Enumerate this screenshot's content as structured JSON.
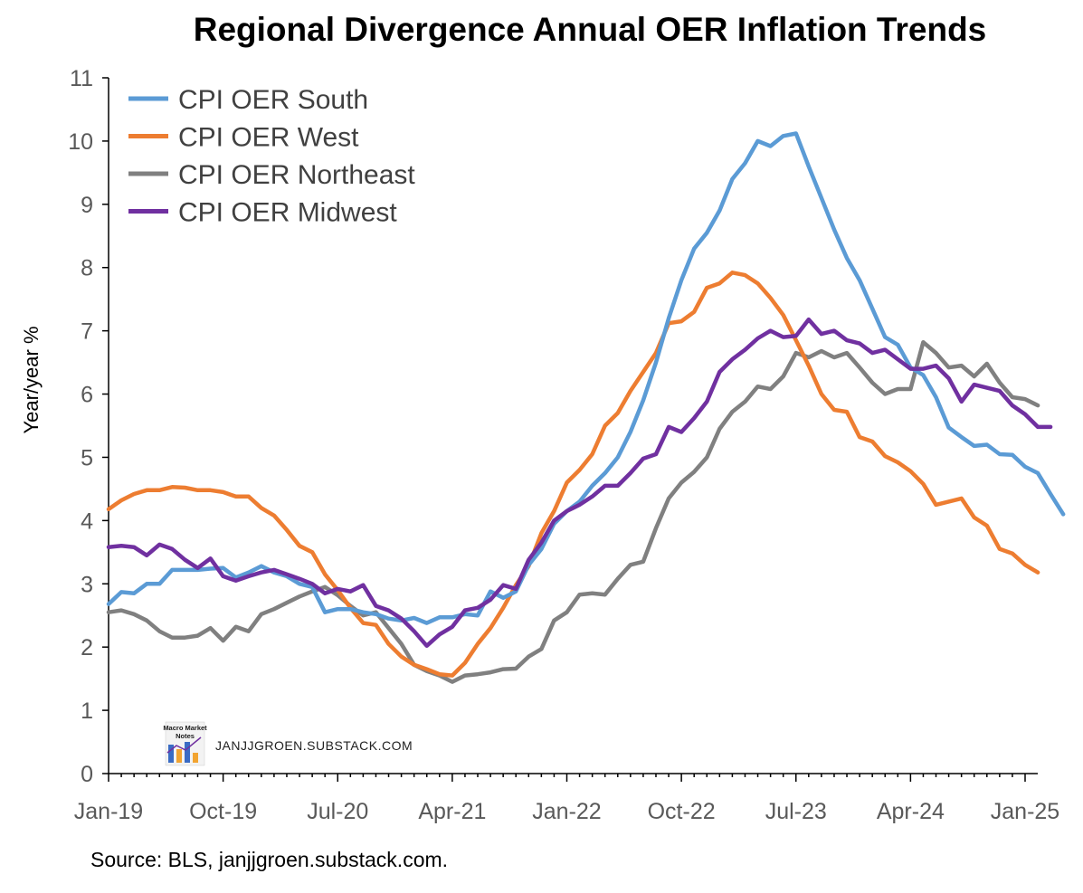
{
  "chart_data": {
    "type": "line",
    "title": "Regional Divergence Annual OER Inflation Trends",
    "ylabel": "Year/year %",
    "xlabel": "",
    "ylim": [
      0,
      11
    ],
    "yticks": [
      0,
      1,
      2,
      3,
      4,
      5,
      6,
      7,
      8,
      9,
      10,
      11
    ],
    "xticks": [
      "Jan-19",
      "Oct-19",
      "Jul-20",
      "Apr-21",
      "Jan-22",
      "Oct-22",
      "Jul-23",
      "Apr-24",
      "Jan-25"
    ],
    "x_start": "Jan-19",
    "x_end": "Jan-25",
    "grid": false,
    "legend_position": "top-left",
    "source": "Source: BLS, janjjgroen.substack.com.",
    "watermark": {
      "text": "JANJJGROEN.SUBSTACK.COM",
      "logo_text": [
        "Macro Market",
        "Notes"
      ]
    },
    "series": [
      {
        "name": "CPI OER South",
        "color": "#5B9BD5",
        "values": [
          2.68,
          2.87,
          2.85,
          3.0,
          3.0,
          3.22,
          3.22,
          3.22,
          3.24,
          3.25,
          3.1,
          3.18,
          3.28,
          3.18,
          3.12,
          3.0,
          2.95,
          2.55,
          2.6,
          2.6,
          2.55,
          2.52,
          2.45,
          2.42,
          2.46,
          2.38,
          2.47,
          2.47,
          2.52,
          2.5,
          2.88,
          2.78,
          2.88,
          3.3,
          3.55,
          3.95,
          4.15,
          4.3,
          4.55,
          4.75,
          5.0,
          5.4,
          5.9,
          6.5,
          7.2,
          7.8,
          8.3,
          8.55,
          8.9,
          9.4,
          9.65,
          10.0,
          9.92,
          10.08,
          10.12,
          9.6,
          9.1,
          8.6,
          8.15,
          7.8,
          7.35,
          6.9,
          6.78,
          6.42,
          6.3,
          5.95,
          5.47,
          5.32,
          5.18,
          5.2,
          5.05,
          5.04,
          4.85,
          4.75,
          4.42,
          4.1
        ]
      },
      {
        "name": "CPI OER West",
        "color": "#ED7D31",
        "values": [
          4.18,
          4.32,
          4.42,
          4.48,
          4.48,
          4.53,
          4.52,
          4.48,
          4.48,
          4.45,
          4.38,
          4.38,
          4.2,
          4.08,
          3.85,
          3.6,
          3.5,
          3.15,
          2.9,
          2.62,
          2.38,
          2.35,
          2.05,
          1.85,
          1.72,
          1.65,
          1.57,
          1.55,
          1.75,
          2.05,
          2.3,
          2.62,
          2.98,
          3.28,
          3.8,
          4.15,
          4.6,
          4.8,
          5.05,
          5.5,
          5.7,
          6.05,
          6.35,
          6.65,
          7.12,
          7.15,
          7.3,
          7.68,
          7.75,
          7.92,
          7.88,
          7.75,
          7.52,
          7.25,
          6.85,
          6.45,
          6.0,
          5.75,
          5.72,
          5.32,
          5.25,
          5.02,
          4.92,
          4.78,
          4.58,
          4.25,
          4.3,
          4.35,
          4.05,
          3.92,
          3.55,
          3.48,
          3.3,
          3.18
        ]
      },
      {
        "name": "CPI OER Northeast",
        "color": "#808080",
        "values": [
          2.55,
          2.58,
          2.52,
          2.42,
          2.25,
          2.15,
          2.15,
          2.18,
          2.3,
          2.1,
          2.32,
          2.25,
          2.52,
          2.6,
          2.7,
          2.8,
          2.88,
          2.95,
          2.82,
          2.65,
          2.5,
          2.55,
          2.3,
          2.05,
          1.72,
          1.62,
          1.55,
          1.45,
          1.55,
          1.57,
          1.6,
          1.65,
          1.66,
          1.85,
          1.97,
          2.42,
          2.55,
          2.83,
          2.85,
          2.83,
          3.08,
          3.3,
          3.35,
          3.88,
          4.35,
          4.6,
          4.77,
          5.0,
          5.45,
          5.72,
          5.88,
          6.12,
          6.08,
          6.28,
          6.65,
          6.58,
          6.68,
          6.58,
          6.65,
          6.42,
          6.18,
          6.0,
          6.08,
          6.08,
          6.82,
          6.65,
          6.42,
          6.45,
          6.28,
          6.48,
          6.18,
          5.95,
          5.92,
          5.82
        ]
      },
      {
        "name": "CPI OER Midwest",
        "color": "#7030A0",
        "values": [
          3.58,
          3.6,
          3.58,
          3.45,
          3.62,
          3.55,
          3.38,
          3.25,
          3.4,
          3.12,
          3.05,
          3.12,
          3.18,
          3.22,
          3.15,
          3.08,
          3.0,
          2.85,
          2.92,
          2.88,
          2.98,
          2.65,
          2.58,
          2.45,
          2.25,
          2.02,
          2.2,
          2.32,
          2.58,
          2.62,
          2.75,
          2.98,
          2.92,
          3.38,
          3.65,
          4.0,
          4.15,
          4.25,
          4.38,
          4.55,
          4.55,
          4.75,
          4.98,
          5.05,
          5.48,
          5.4,
          5.62,
          5.88,
          6.35,
          6.55,
          6.7,
          6.88,
          7.0,
          6.9,
          6.92,
          7.18,
          6.95,
          7.0,
          6.85,
          6.8,
          6.65,
          6.7,
          6.55,
          6.4,
          6.4,
          6.45,
          6.25,
          5.88,
          6.15,
          6.1,
          6.05,
          5.82,
          5.68,
          5.48,
          5.48
        ]
      }
    ]
  }
}
